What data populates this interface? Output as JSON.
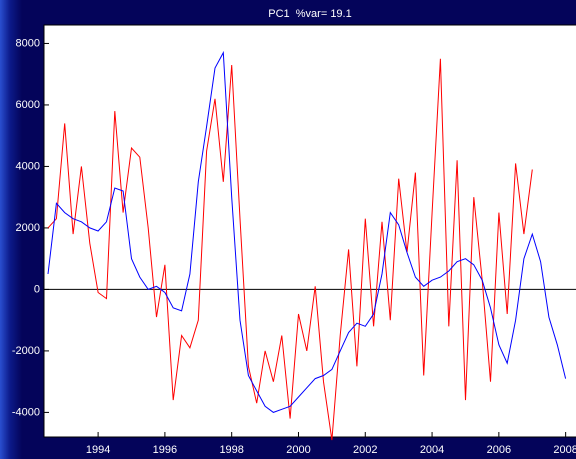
{
  "chart_data": {
    "type": "line",
    "title": "PC1  %var= 19.1",
    "x": [
      1992.5,
      1992.75,
      1993.0,
      1993.25,
      1993.5,
      1993.75,
      1994.0,
      1994.25,
      1994.5,
      1994.75,
      1995.0,
      1995.25,
      1995.5,
      1995.75,
      1996.0,
      1996.25,
      1996.5,
      1996.75,
      1997.0,
      1997.25,
      1997.5,
      1997.75,
      1998.0,
      1998.25,
      1998.5,
      1998.75,
      1999.0,
      1999.25,
      1999.5,
      1999.75,
      2000.0,
      2000.25,
      2000.5,
      2000.75,
      2001.0,
      2001.25,
      2001.5,
      2001.75,
      2002.0,
      2002.25,
      2002.5,
      2002.75,
      2003.0,
      2003.25,
      2003.5,
      2003.75,
      2004.0,
      2004.25,
      2004.5,
      2004.75,
      2005.0,
      2005.25,
      2005.5,
      2005.75,
      2006.0,
      2006.25,
      2006.5,
      2006.75,
      2007.0,
      2007.25,
      2007.5,
      2007.75,
      2008.0
    ],
    "series": [
      {
        "color": "#ff0000",
        "values": [
          2000,
          2300,
          5400,
          1800,
          4000,
          1500,
          -100,
          -300,
          5800,
          2500,
          4600,
          4300,
          2000,
          -900,
          800,
          -3600,
          -1500,
          -1900,
          -1000,
          4500,
          6200,
          3500,
          7300,
          2300,
          -2500,
          -3700,
          -2000,
          -3000,
          -1500,
          -4200,
          -800,
          -2000,
          100,
          -3000,
          -4900,
          -1500,
          1300,
          -2500,
          2300,
          -1200,
          2200,
          -1000,
          3600,
          1200,
          3800,
          -2800,
          2500,
          7500,
          -1200,
          4200,
          -3600,
          3000,
          300,
          -3000,
          2500,
          -800,
          4100,
          1800,
          3900,
          null,
          null,
          null,
          null
        ]
      },
      {
        "color": "#0000ff",
        "values": [
          500,
          2800,
          2500,
          2300,
          2200,
          2000,
          1900,
          2200,
          3300,
          3200,
          1000,
          400,
          0,
          100,
          -100,
          -600,
          -700,
          500,
          3500,
          5300,
          7200,
          7700,
          3000,
          -1000,
          -2800,
          -3300,
          -3800,
          -4000,
          -3900,
          -3800,
          -3500,
          -3200,
          -2900,
          -2800,
          -2600,
          -2000,
          -1400,
          -1100,
          -1200,
          -800,
          500,
          2500,
          2100,
          1200,
          400,
          100,
          300,
          400,
          600,
          900,
          1000,
          800,
          300,
          -600,
          -1800,
          -2400,
          -1000,
          1000,
          1800,
          900,
          -900,
          -1800,
          -2900
        ]
      }
    ],
    "xlim": [
      1992.38,
      2008.31
    ],
    "xticks": [
      1994,
      1996,
      1998,
      2000,
      2002,
      2004,
      2006,
      2008
    ],
    "ylim": [
      -4800,
      8600
    ],
    "yticks": [
      -4000,
      -2000,
      0,
      2000,
      4000,
      6000,
      8000
    ],
    "zero_line": true
  }
}
